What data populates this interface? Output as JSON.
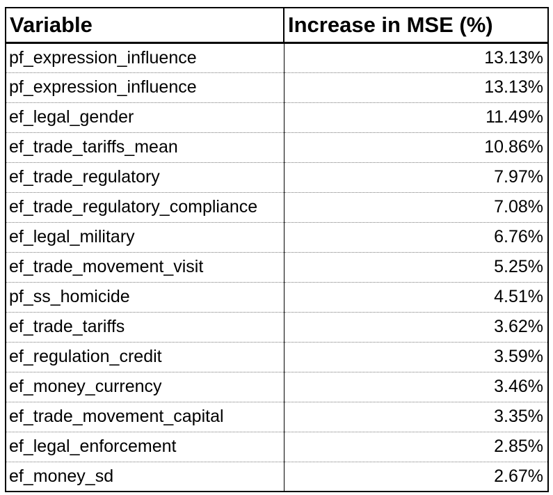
{
  "table": {
    "headers": {
      "variable": "Variable",
      "increase": "Increase in MSE (%)"
    },
    "rows": [
      {
        "variable": "pf_expression_influence",
        "increase": "13.13%"
      },
      {
        "variable": "pf_expression_influence",
        "increase": "13.13%"
      },
      {
        "variable": "ef_legal_gender",
        "increase": "11.49%"
      },
      {
        "variable": "ef_trade_tariffs_mean",
        "increase": "10.86%"
      },
      {
        "variable": "ef_trade_regulatory",
        "increase": "7.97%"
      },
      {
        "variable": "ef_trade_regulatory_compliance",
        "increase": "7.08%"
      },
      {
        "variable": "ef_legal_military",
        "increase": "6.76%"
      },
      {
        "variable": "ef_trade_movement_visit",
        "increase": "5.25%"
      },
      {
        "variable": "pf_ss_homicide",
        "increase": "4.51%"
      },
      {
        "variable": "ef_trade_tariffs",
        "increase": "3.62%"
      },
      {
        "variable": "ef_regulation_credit",
        "increase": "3.59%"
      },
      {
        "variable": "ef_money_currency",
        "increase": "3.46%"
      },
      {
        "variable": "ef_trade_movement_capital",
        "increase": "3.35%"
      },
      {
        "variable": "ef_legal_enforcement",
        "increase": "2.85%"
      },
      {
        "variable": "ef_money_sd",
        "increase": "2.67%"
      }
    ]
  }
}
